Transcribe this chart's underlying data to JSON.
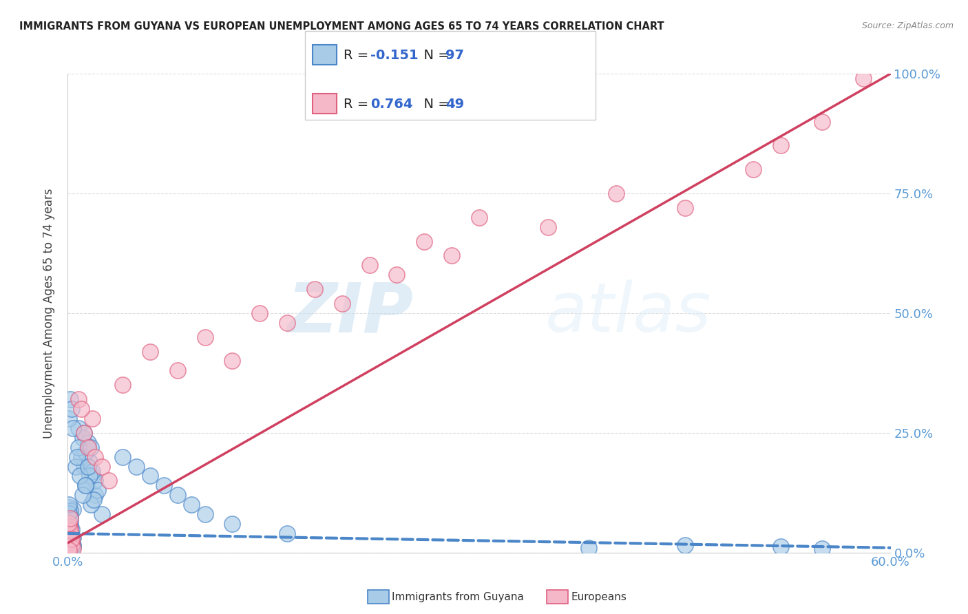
{
  "title": "IMMIGRANTS FROM GUYANA VS EUROPEAN UNEMPLOYMENT AMONG AGES 65 TO 74 YEARS CORRELATION CHART",
  "source": "Source: ZipAtlas.com",
  "ylabel_left": "Unemployment Among Ages 65 to 74 years",
  "legend_entries": [
    {
      "label": "Immigrants from Guyana",
      "R": -0.151,
      "N": 97,
      "color_face": "#a8cce8",
      "color_edge": "#4a86c8"
    },
    {
      "label": "Europeans",
      "R": 0.764,
      "N": 49,
      "color_face": "#f5b8c8",
      "color_edge": "#e06080"
    }
  ],
  "blue_scatter_x": [
    0.002,
    0.003,
    0.001,
    0.004,
    0.002,
    0.001,
    0.003,
    0.002,
    0.001,
    0.002,
    0.001,
    0.003,
    0.002,
    0.001,
    0.004,
    0.002,
    0.001,
    0.003,
    0.002,
    0.001,
    0.002,
    0.001,
    0.003,
    0.002,
    0.001,
    0.004,
    0.002,
    0.001,
    0.003,
    0.002,
    0.001,
    0.002,
    0.003,
    0.001,
    0.002,
    0.001,
    0.003,
    0.002,
    0.001,
    0.004,
    0.002,
    0.001,
    0.003,
    0.002,
    0.001,
    0.002,
    0.003,
    0.001,
    0.002,
    0.001,
    0.012,
    0.015,
    0.018,
    0.02,
    0.025,
    0.01,
    0.014,
    0.017,
    0.008,
    0.011,
    0.016,
    0.013,
    0.02,
    0.022,
    0.018,
    0.015,
    0.012,
    0.019,
    0.016,
    0.013,
    0.008,
    0.006,
    0.007,
    0.009,
    0.011,
    0.013,
    0.015,
    0.017,
    0.04,
    0.05,
    0.06,
    0.07,
    0.08,
    0.09,
    0.1,
    0.12,
    0.16,
    0.38,
    0.45,
    0.52,
    0.55,
    0.001,
    0.002,
    0.003,
    0.004
  ],
  "blue_scatter_y": [
    0.02,
    0.03,
    0.025,
    0.015,
    0.04,
    0.018,
    0.022,
    0.035,
    0.028,
    0.012,
    0.045,
    0.016,
    0.038,
    0.008,
    0.032,
    0.024,
    0.055,
    0.014,
    0.042,
    0.006,
    0.052,
    0.01,
    0.048,
    0.018,
    0.062,
    0.012,
    0.058,
    0.004,
    0.028,
    0.072,
    0.065,
    0.015,
    0.035,
    0.078,
    0.008,
    0.085,
    0.025,
    0.068,
    0.005,
    0.09,
    0.019,
    0.095,
    0.032,
    0.075,
    0.042,
    0.088,
    0.022,
    0.082,
    0.038,
    0.1,
    0.18,
    0.22,
    0.16,
    0.12,
    0.08,
    0.2,
    0.14,
    0.1,
    0.26,
    0.24,
    0.19,
    0.21,
    0.15,
    0.13,
    0.17,
    0.23,
    0.25,
    0.11,
    0.16,
    0.14,
    0.22,
    0.18,
    0.2,
    0.16,
    0.12,
    0.14,
    0.18,
    0.22,
    0.2,
    0.18,
    0.16,
    0.14,
    0.12,
    0.1,
    0.08,
    0.06,
    0.04,
    0.01,
    0.015,
    0.012,
    0.008,
    0.28,
    0.32,
    0.3,
    0.26
  ],
  "pink_scatter_x": [
    0.001,
    0.002,
    0.001,
    0.003,
    0.002,
    0.001,
    0.002,
    0.001,
    0.003,
    0.002,
    0.001,
    0.002,
    0.003,
    0.001,
    0.004,
    0.002,
    0.001,
    0.003,
    0.002,
    0.001,
    0.012,
    0.015,
    0.018,
    0.02,
    0.025,
    0.03,
    0.008,
    0.01,
    0.04,
    0.06,
    0.08,
    0.1,
    0.12,
    0.14,
    0.16,
    0.18,
    0.2,
    0.22,
    0.24,
    0.26,
    0.28,
    0.3,
    0.35,
    0.4,
    0.45,
    0.5,
    0.52,
    0.55,
    0.58
  ],
  "pink_scatter_y": [
    0.02,
    0.03,
    0.015,
    0.025,
    0.018,
    0.035,
    0.012,
    0.042,
    0.022,
    0.048,
    0.01,
    0.038,
    0.016,
    0.055,
    0.008,
    0.045,
    0.062,
    0.028,
    0.072,
    0.005,
    0.25,
    0.22,
    0.28,
    0.2,
    0.18,
    0.15,
    0.32,
    0.3,
    0.35,
    0.42,
    0.38,
    0.45,
    0.4,
    0.5,
    0.48,
    0.55,
    0.52,
    0.6,
    0.58,
    0.65,
    0.62,
    0.7,
    0.68,
    0.75,
    0.72,
    0.8,
    0.85,
    0.9,
    0.99
  ],
  "blue_line_x": [
    0.0,
    0.6
  ],
  "blue_line_y": [
    0.04,
    0.01
  ],
  "pink_line_x": [
    0.0,
    0.6
  ],
  "pink_line_y": [
    0.02,
    1.0
  ],
  "xlim": [
    0.0,
    0.6
  ],
  "ylim": [
    0.0,
    1.0
  ],
  "yticks": [
    0.0,
    0.25,
    0.5,
    0.75,
    1.0
  ],
  "ytick_labels": [
    "0.0%",
    "25.0%",
    "50.0%",
    "75.0%",
    "100.0%"
  ],
  "xticks": [
    0.0,
    0.6
  ],
  "xtick_labels": [
    "0.0%",
    "60.0%"
  ],
  "watermark_text": "ZIP",
  "watermark_text2": "atlas",
  "background_color": "#ffffff",
  "grid_color": "#dddddd",
  "title_color": "#222222",
  "source_color": "#888888",
  "tick_color": "#5b9bd5",
  "ylabel_color": "#444444"
}
